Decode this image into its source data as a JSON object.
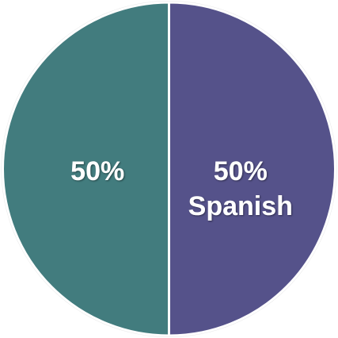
{
  "chart_data": {
    "type": "pie",
    "categories": [
      "Spanish",
      null
    ],
    "values": [
      50,
      50
    ],
    "value_labels": [
      "50%",
      "50%"
    ],
    "colors": [
      "#55528a",
      "#427c7e"
    ]
  }
}
